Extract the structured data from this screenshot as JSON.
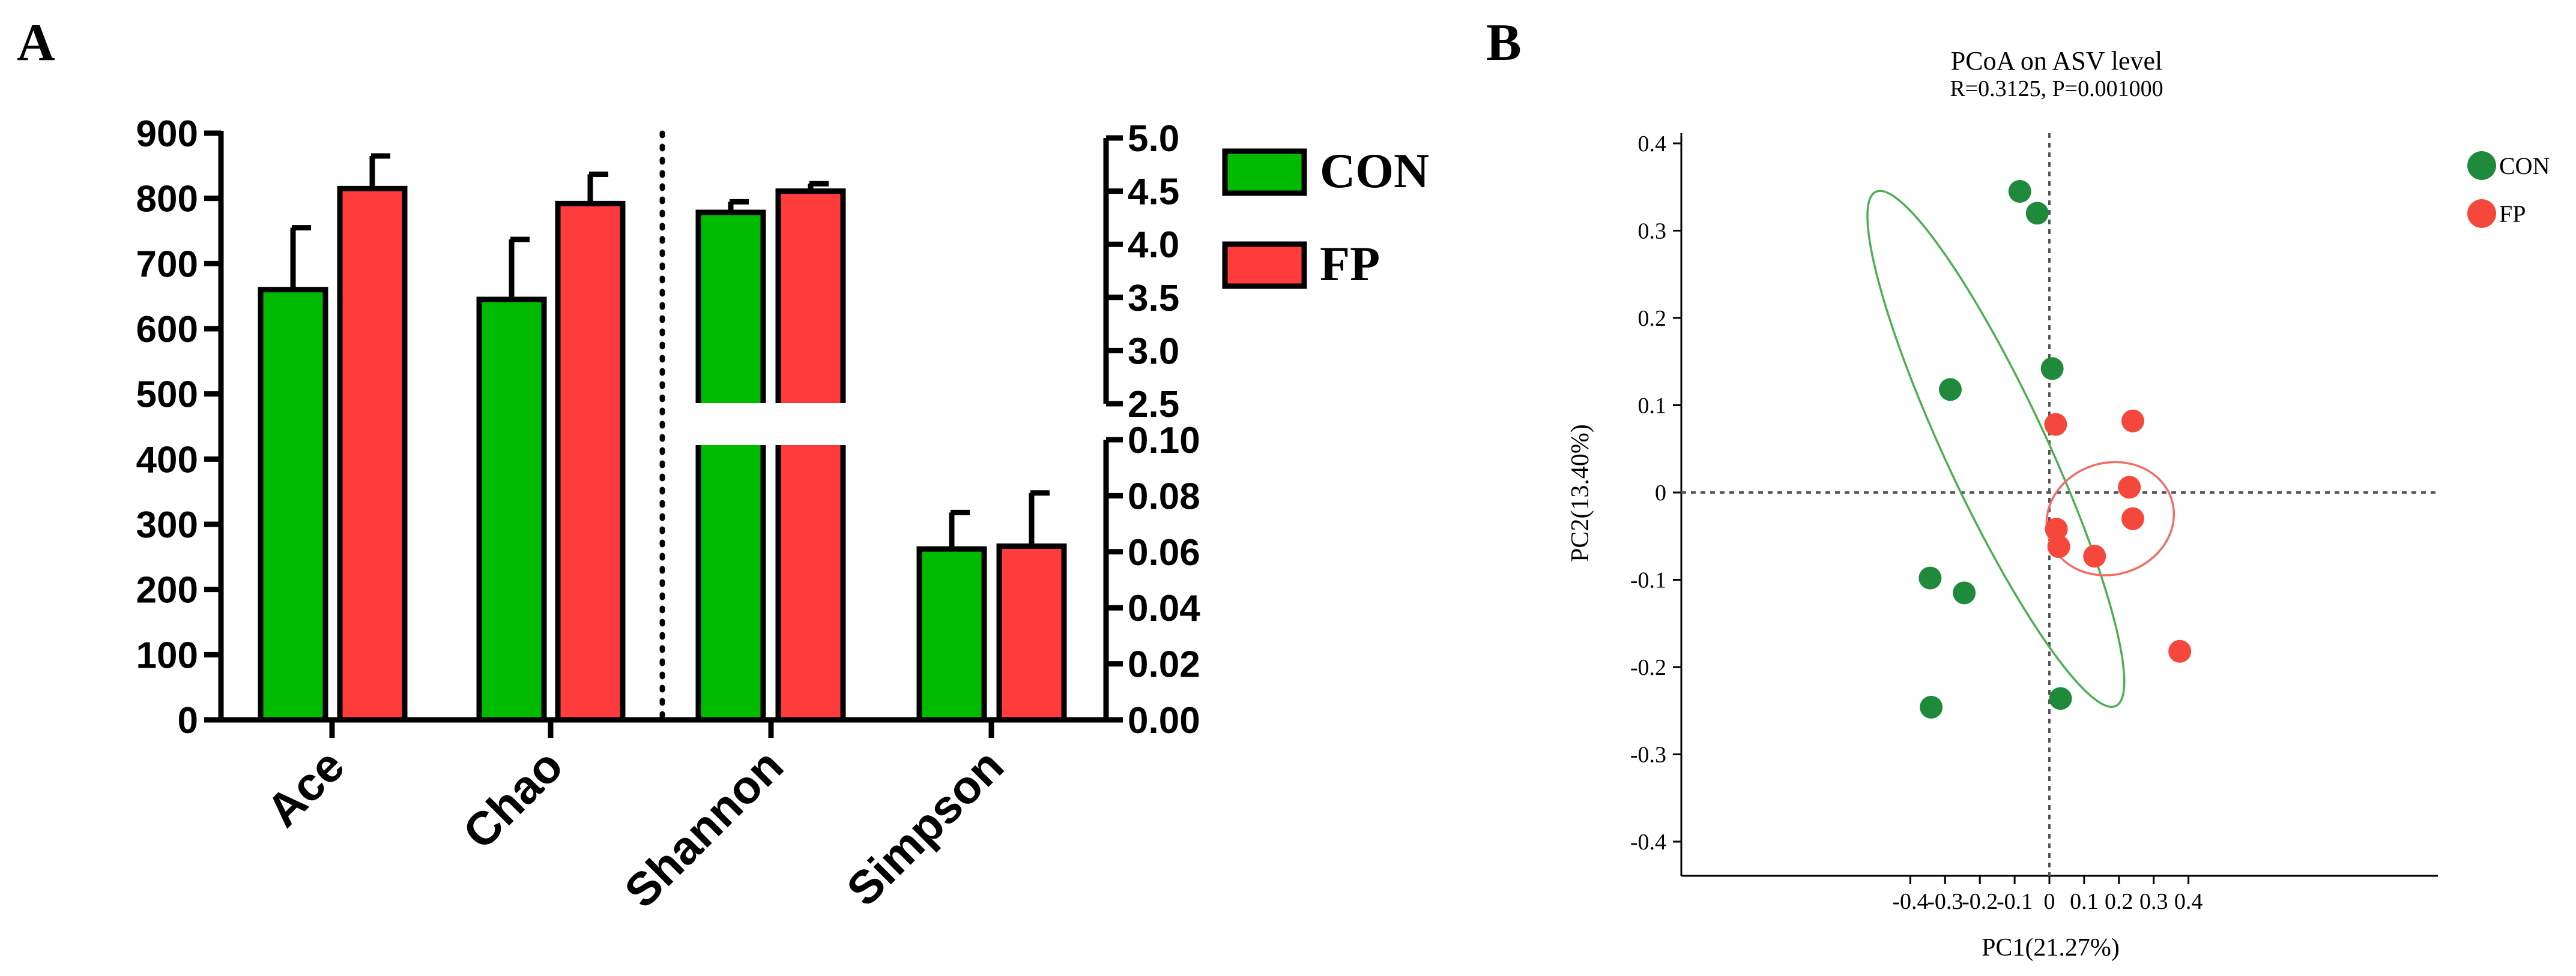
{
  "panel_labels": {
    "a": "A",
    "b": "B"
  },
  "colors": {
    "con": "#00bb00",
    "fp": "#ff3b3b",
    "con_dot": "#1f8a3c",
    "fp_dot": "#f5473c",
    "con_ellipse": "#4caf50",
    "fp_ellipse": "#f06c66"
  },
  "chart_data": [
    {
      "type": "bar",
      "panel": "A",
      "categories": [
        "Ace",
        "Chao",
        "Shannon",
        "Simpson"
      ],
      "series": [
        {
          "name": "CON",
          "values": [
            660,
            645,
            4.3,
            0.061
          ],
          "errors": [
            95,
            92,
            0.1,
            0.013
          ]
        },
        {
          "name": "FP",
          "values": [
            815,
            792,
            4.5,
            0.062
          ],
          "errors": [
            50,
            45,
            0.07,
            0.019
          ]
        }
      ],
      "left_axis": {
        "ylim": [
          0,
          900
        ],
        "ticks": [
          "0",
          "100",
          "200",
          "300",
          "400",
          "500",
          "600",
          "700",
          "800",
          "900"
        ]
      },
      "right_axis_upper": {
        "ylim": [
          2.5,
          5.0
        ],
        "ticks": [
          "2.5",
          "3.0",
          "3.5",
          "4.0",
          "4.5",
          "5.0"
        ]
      },
      "right_axis_lower": {
        "ylim": [
          0,
          0.1
        ],
        "ticks": [
          "0.00",
          "0.02",
          "0.04",
          "0.06",
          "0.08",
          "0.10"
        ]
      },
      "legend": [
        "CON",
        "FP"
      ],
      "legend_position": "top-right"
    },
    {
      "type": "scatter",
      "panel": "B",
      "title": "PCoA on ASV level",
      "subtitle": "R=0.3125, P=0.001000",
      "xlabel": "PC1(21.27%)",
      "ylabel": "PC2(13.40%)",
      "xlim": [
        -0.45,
        0.43
      ],
      "ylim": [
        -0.44,
        0.41
      ],
      "xticks": [
        "-0.4",
        "-0.3",
        "-0.2",
        "-0.1",
        "0",
        "0.1",
        "0.2",
        "0.3",
        "0.4"
      ],
      "yticks": [
        "0.4",
        "0.3",
        "0.2",
        "0.1",
        "0",
        "-0.1",
        "-0.2",
        "-0.3",
        "-0.4"
      ],
      "series": [
        {
          "name": "CON",
          "x": [
            -0.085,
            -0.035,
            0.008,
            -0.285,
            -0.343,
            -0.245,
            -0.34,
            0.032
          ],
          "y": [
            0.345,
            0.32,
            0.142,
            0.118,
            -0.098,
            -0.115,
            -0.246,
            -0.236
          ]
        },
        {
          "name": "FP",
          "x": [
            0.018,
            0.02,
            0.027,
            0.24,
            0.13,
            0.23,
            0.24,
            0.375
          ],
          "y": [
            0.078,
            -0.042,
            -0.062,
            0.082,
            -0.073,
            0.006,
            -0.03,
            -0.182
          ]
        }
      ],
      "ellipses": [
        {
          "series": "CON",
          "center": [
            -0.154,
            0.05
          ],
          "semi_axes": [
            0.145,
            0.325
          ],
          "rotation_deg": -25
        },
        {
          "series": "FP",
          "center": [
            0.175,
            -0.03
          ],
          "semi_axes": [
            0.185,
            0.064
          ],
          "rotation_deg": -17
        }
      ],
      "legend": [
        "CON",
        "FP"
      ],
      "legend_position": "top-right",
      "reference_lines": {
        "x": 0,
        "y": 0
      }
    }
  ]
}
